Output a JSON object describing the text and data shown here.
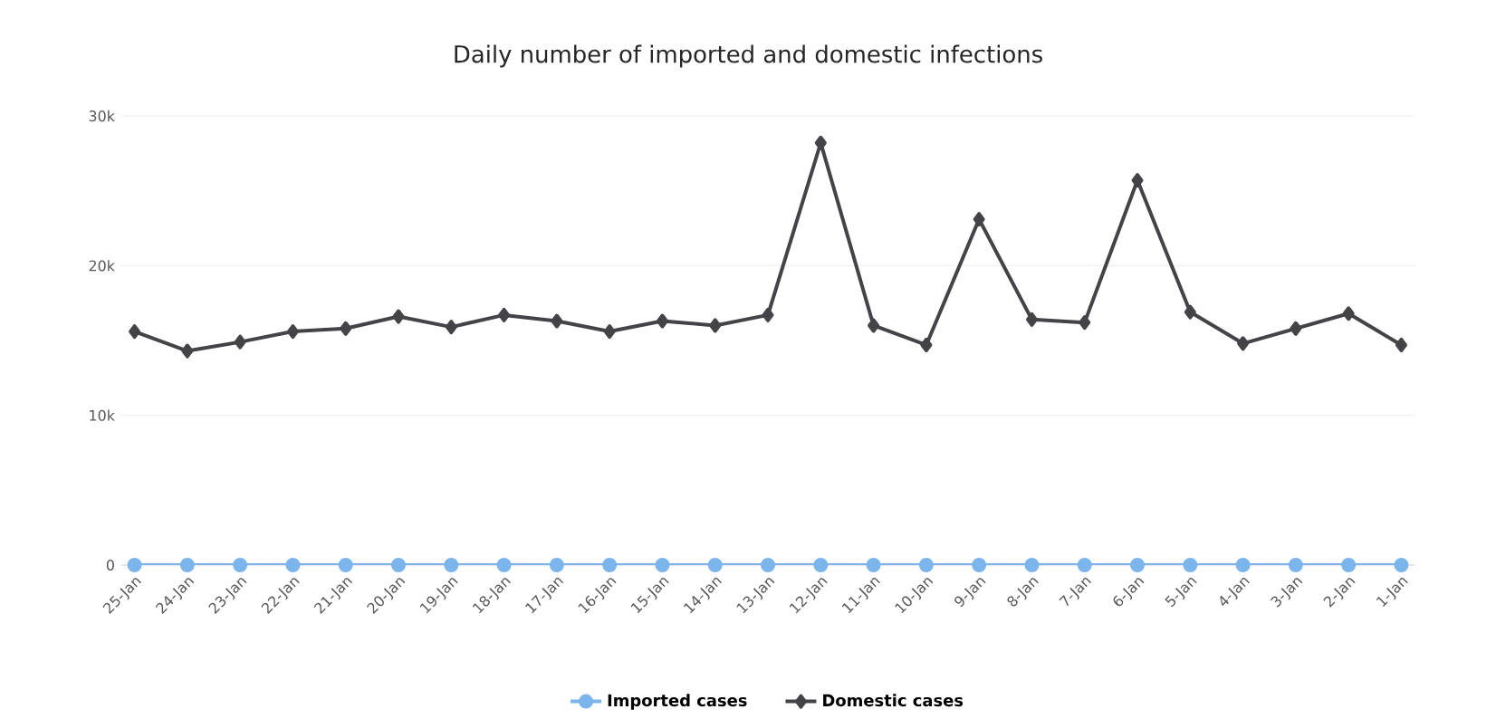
{
  "chart_data": {
    "type": "line",
    "title": "Daily number of imported and domestic infections",
    "categories": [
      "25-Jan",
      "24-Jan",
      "23-Jan",
      "22-Jan",
      "21-Jan",
      "20-Jan",
      "19-Jan",
      "18-Jan",
      "17-Jan",
      "16-Jan",
      "15-Jan",
      "14-Jan",
      "13-Jan",
      "12-Jan",
      "11-Jan",
      "10-Jan",
      "9-Jan",
      "8-Jan",
      "7-Jan",
      "6-Jan",
      "5-Jan",
      "4-Jan",
      "3-Jan",
      "2-Jan",
      "1-Jan"
    ],
    "series": [
      {
        "name": "Imported cases",
        "color": "#7cb5ec",
        "marker": "circle",
        "values": [
          0,
          0,
          0,
          0,
          0,
          0,
          0,
          0,
          0,
          0,
          0,
          0,
          0,
          0,
          0,
          0,
          0,
          0,
          0,
          0,
          0,
          0,
          0,
          0,
          0
        ]
      },
      {
        "name": "Domestic cases",
        "color": "#434348",
        "marker": "diamond",
        "values": [
          15600,
          14300,
          14900,
          15600,
          15800,
          16600,
          15900,
          16700,
          16300,
          15600,
          16300,
          16000,
          16700,
          28200,
          16000,
          14700,
          23100,
          16400,
          16200,
          25700,
          16900,
          14800,
          15800,
          16800,
          14700
        ]
      }
    ],
    "ylim": [
      0,
      30000
    ],
    "yticks": [
      0,
      {
        "value": 10000,
        "label": "10k"
      },
      {
        "value": 20000,
        "label": "20k"
      },
      {
        "value": 30000,
        "label": "30k"
      }
    ],
    "grid": "y",
    "legend": "bottom",
    "line_style": "solid"
  }
}
